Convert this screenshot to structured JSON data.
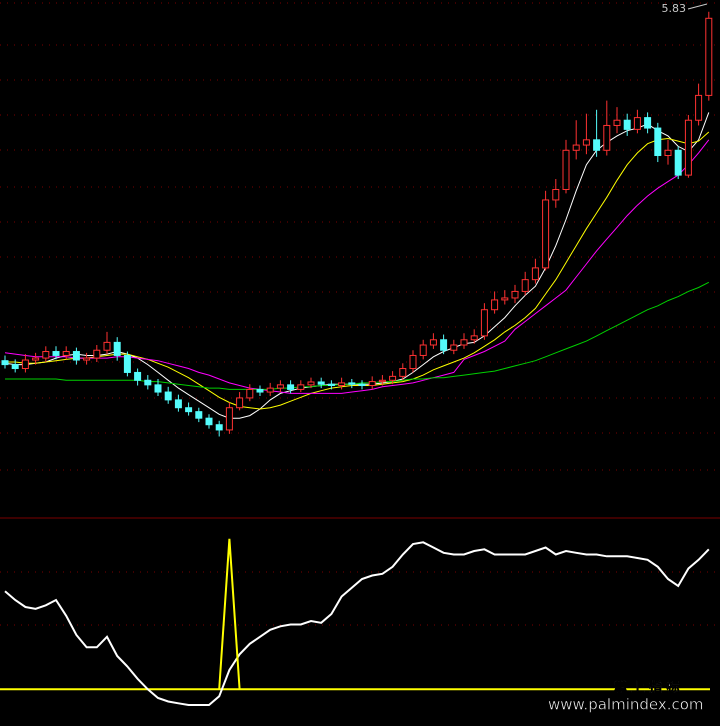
{
  "chart_data": [
    {
      "type": "candlestick",
      "open": [
        3.16,
        3.13,
        3.1,
        3.165,
        3.18,
        3.23,
        3.2,
        3.23,
        3.165,
        3.18,
        3.24,
        3.3,
        3.2,
        3.07,
        3.01,
        2.975,
        2.92,
        2.86,
        2.8,
        2.77,
        2.72,
        2.67,
        2.63,
        2.8,
        2.875,
        2.94,
        2.92,
        2.95,
        2.975,
        2.94,
        2.975,
        2.997,
        2.98,
        2.97,
        2.99,
        2.98,
        2.97,
        3.0,
        3.01,
        3.04,
        3.1,
        3.2,
        3.28,
        3.32,
        3.24,
        3.28,
        3.32,
        3.35,
        3.55,
        3.625,
        3.64,
        3.69,
        3.78,
        3.87,
        4.39,
        4.47,
        4.77,
        4.81,
        4.85,
        4.77,
        4.96,
        5.0,
        4.93,
        5.02,
        4.94,
        4.73,
        4.77,
        4.58,
        5.0,
        5.19
      ],
      "high": [
        3.2,
        3.17,
        3.21,
        3.22,
        3.27,
        3.27,
        3.27,
        3.26,
        3.22,
        3.28,
        3.38,
        3.34,
        3.23,
        3.1,
        3.05,
        3.02,
        2.96,
        2.9,
        2.84,
        2.8,
        2.75,
        2.7,
        2.84,
        2.92,
        2.98,
        2.97,
        2.99,
        3.01,
        3.01,
        3.01,
        3.03,
        3.03,
        3.01,
        3.03,
        3.02,
        3.01,
        3.04,
        3.05,
        3.08,
        3.14,
        3.24,
        3.32,
        3.37,
        3.36,
        3.32,
        3.37,
        3.4,
        3.6,
        3.69,
        3.7,
        3.74,
        3.84,
        3.94,
        4.46,
        4.55,
        4.85,
        5.0,
        5.05,
        5.08,
        5.15,
        5.1,
        5.05,
        5.08,
        5.06,
        4.98,
        4.85,
        4.8,
        5.04,
        5.28,
        5.83
      ],
      "low": [
        3.1,
        3.07,
        3.07,
        3.13,
        3.15,
        3.17,
        3.17,
        3.13,
        3.13,
        3.15,
        3.21,
        3.16,
        3.04,
        2.97,
        2.94,
        2.89,
        2.83,
        2.77,
        2.74,
        2.69,
        2.64,
        2.58,
        2.6,
        2.78,
        2.85,
        2.89,
        2.89,
        2.92,
        2.91,
        2.92,
        2.95,
        2.95,
        2.94,
        2.94,
        2.95,
        2.94,
        2.94,
        2.97,
        2.98,
        3.01,
        3.07,
        3.17,
        3.25,
        3.21,
        3.21,
        3.25,
        3.29,
        3.32,
        3.52,
        3.59,
        3.6,
        3.66,
        3.75,
        3.85,
        4.33,
        4.44,
        4.7,
        4.74,
        4.72,
        4.73,
        4.9,
        4.88,
        4.9,
        4.9,
        4.68,
        4.66,
        4.55,
        4.56,
        4.96,
        5.15
      ],
      "close": [
        3.13,
        3.1,
        3.165,
        3.18,
        3.23,
        3.2,
        3.23,
        3.165,
        3.18,
        3.24,
        3.3,
        3.2,
        3.07,
        3.01,
        2.975,
        2.92,
        2.86,
        2.8,
        2.77,
        2.72,
        2.67,
        2.63,
        2.8,
        2.875,
        2.94,
        2.92,
        2.95,
        2.975,
        2.94,
        2.975,
        2.997,
        2.98,
        2.97,
        2.99,
        2.98,
        2.97,
        3.0,
        3.01,
        3.04,
        3.1,
        3.2,
        3.28,
        3.32,
        3.24,
        3.28,
        3.32,
        3.35,
        3.55,
        3.625,
        3.64,
        3.69,
        3.78,
        3.87,
        4.39,
        4.47,
        4.77,
        4.81,
        4.85,
        4.77,
        4.96,
        5.0,
        4.93,
        5.02,
        4.94,
        4.73,
        4.77,
        4.58,
        5.0,
        5.19,
        5.78
      ],
      "up_color": "#ff3232",
      "down_color": "#54fcfc",
      "ylim": [
        2.4,
        5.92
      ],
      "series": [
        {
          "color": "#ffffff",
          "values": [
            3.14,
            3.13,
            3.13,
            3.14,
            3.15,
            3.18,
            3.2,
            3.21,
            3.2,
            3.2,
            3.21,
            3.23,
            3.21,
            3.18,
            3.13,
            3.07,
            3.01,
            2.95,
            2.9,
            2.85,
            2.8,
            2.75,
            2.72,
            2.72,
            2.74,
            2.79,
            2.86,
            2.91,
            2.93,
            2.95,
            2.96,
            2.97,
            2.98,
            2.98,
            2.98,
            2.98,
            2.98,
            2.99,
            3.0,
            3.02,
            3.07,
            3.13,
            3.19,
            3.23,
            3.26,
            3.29,
            3.3,
            3.35,
            3.42,
            3.49,
            3.58,
            3.66,
            3.73,
            3.87,
            4.04,
            4.24,
            4.46,
            4.66,
            4.77,
            4.83,
            4.88,
            4.92,
            4.94,
            4.97,
            4.92,
            4.88,
            4.8,
            4.76,
            4.85,
            5.06
          ]
        },
        {
          "color": "#ffff00",
          "values": [
            3.15,
            3.15,
            3.14,
            3.14,
            3.15,
            3.16,
            3.17,
            3.18,
            3.18,
            3.19,
            3.2,
            3.21,
            3.21,
            3.19,
            3.17,
            3.14,
            3.11,
            3.07,
            3.03,
            2.98,
            2.93,
            2.88,
            2.84,
            2.81,
            2.8,
            2.79,
            2.8,
            2.82,
            2.85,
            2.88,
            2.91,
            2.93,
            2.95,
            2.96,
            2.97,
            2.97,
            2.97,
            2.98,
            2.99,
            3.0,
            3.02,
            3.05,
            3.09,
            3.12,
            3.15,
            3.18,
            3.22,
            3.27,
            3.32,
            3.38,
            3.43,
            3.49,
            3.56,
            3.67,
            3.78,
            3.91,
            4.04,
            4.17,
            4.29,
            4.41,
            4.54,
            4.66,
            4.75,
            4.82,
            4.85,
            4.86,
            4.84,
            4.82,
            4.84,
            4.91
          ]
        },
        {
          "color": "#ff00ff",
          "values": [
            3.22,
            3.21,
            3.2,
            3.19,
            3.19,
            3.19,
            3.19,
            3.18,
            3.18,
            3.18,
            3.18,
            3.19,
            3.19,
            3.18,
            3.17,
            3.16,
            3.14,
            3.12,
            3.1,
            3.07,
            3.05,
            3.02,
            2.99,
            2.97,
            2.95,
            2.94,
            2.93,
            2.92,
            2.91,
            2.91,
            2.91,
            2.91,
            2.91,
            2.91,
            2.92,
            2.93,
            2.94,
            2.96,
            2.97,
            2.98,
            2.99,
            3.01,
            3.03,
            3.05,
            3.07,
            3.17,
            3.2,
            3.23,
            3.27,
            3.31,
            3.4,
            3.46,
            3.52,
            3.58,
            3.64,
            3.7,
            3.8,
            3.9,
            4.0,
            4.09,
            4.18,
            4.27,
            4.35,
            4.42,
            4.48,
            4.53,
            4.58,
            4.66,
            4.75,
            4.85
          ]
        },
        {
          "color": "#00d000",
          "values": [
            3.02,
            3.02,
            3.02,
            3.02,
            3.02,
            3.02,
            3.01,
            3.01,
            3.01,
            3.01,
            3.01,
            3.01,
            3.01,
            3.01,
            3.0,
            3.0,
            2.99,
            2.98,
            2.97,
            2.96,
            2.95,
            2.95,
            2.94,
            2.94,
            2.94,
            2.94,
            2.94,
            2.95,
            2.95,
            2.96,
            2.96,
            2.97,
            2.97,
            2.98,
            2.98,
            2.99,
            2.99,
            3.0,
            3.0,
            3.01,
            3.02,
            3.02,
            3.03,
            3.03,
            3.04,
            3.05,
            3.06,
            3.07,
            3.08,
            3.1,
            3.12,
            3.14,
            3.16,
            3.19,
            3.22,
            3.25,
            3.28,
            3.31,
            3.35,
            3.39,
            3.43,
            3.47,
            3.51,
            3.55,
            3.58,
            3.62,
            3.65,
            3.69,
            3.72,
            3.76
          ]
        }
      ]
    },
    {
      "type": "line",
      "ylim": [
        0,
        100
      ],
      "reference": {
        "value": 9,
        "color": "#ffff00"
      },
      "series": [
        {
          "color": "#ffffff",
          "values": [
            65,
            60,
            56,
            55,
            57,
            60,
            51,
            40,
            33,
            33,
            39,
            28,
            22,
            15,
            9,
            4,
            2,
            1,
            0,
            0,
            0,
            5,
            20,
            29,
            35,
            39,
            43,
            45,
            46,
            46,
            48,
            47,
            52,
            62,
            67,
            72,
            74,
            75,
            79,
            86,
            92,
            93,
            90,
            87,
            86,
            86,
            88,
            89,
            86,
            86,
            86,
            86,
            88,
            90,
            86,
            88,
            87,
            86,
            86,
            85,
            85,
            85,
            84,
            83,
            79,
            72,
            68,
            78,
            83,
            89
          ]
        },
        {
          "color": "#ffff00",
          "values": [
            null,
            null,
            null,
            null,
            null,
            null,
            null,
            null,
            null,
            null,
            null,
            null,
            null,
            null,
            null,
            null,
            null,
            null,
            null,
            null,
            null,
            9,
            95,
            9,
            null,
            null,
            null,
            null,
            null,
            null,
            null,
            null,
            null,
            null,
            null,
            null,
            null,
            null,
            null,
            null,
            null,
            null,
            null,
            null,
            null,
            null,
            null,
            null,
            null,
            null,
            null,
            null,
            null,
            null,
            null,
            null,
            null,
            null,
            null,
            null,
            null,
            null,
            null,
            null,
            null,
            null,
            null,
            null,
            null,
            null
          ]
        }
      ]
    }
  ],
  "watermark": {
    "title": "掌 上 指 标",
    "url": "www.palmindex.com"
  }
}
